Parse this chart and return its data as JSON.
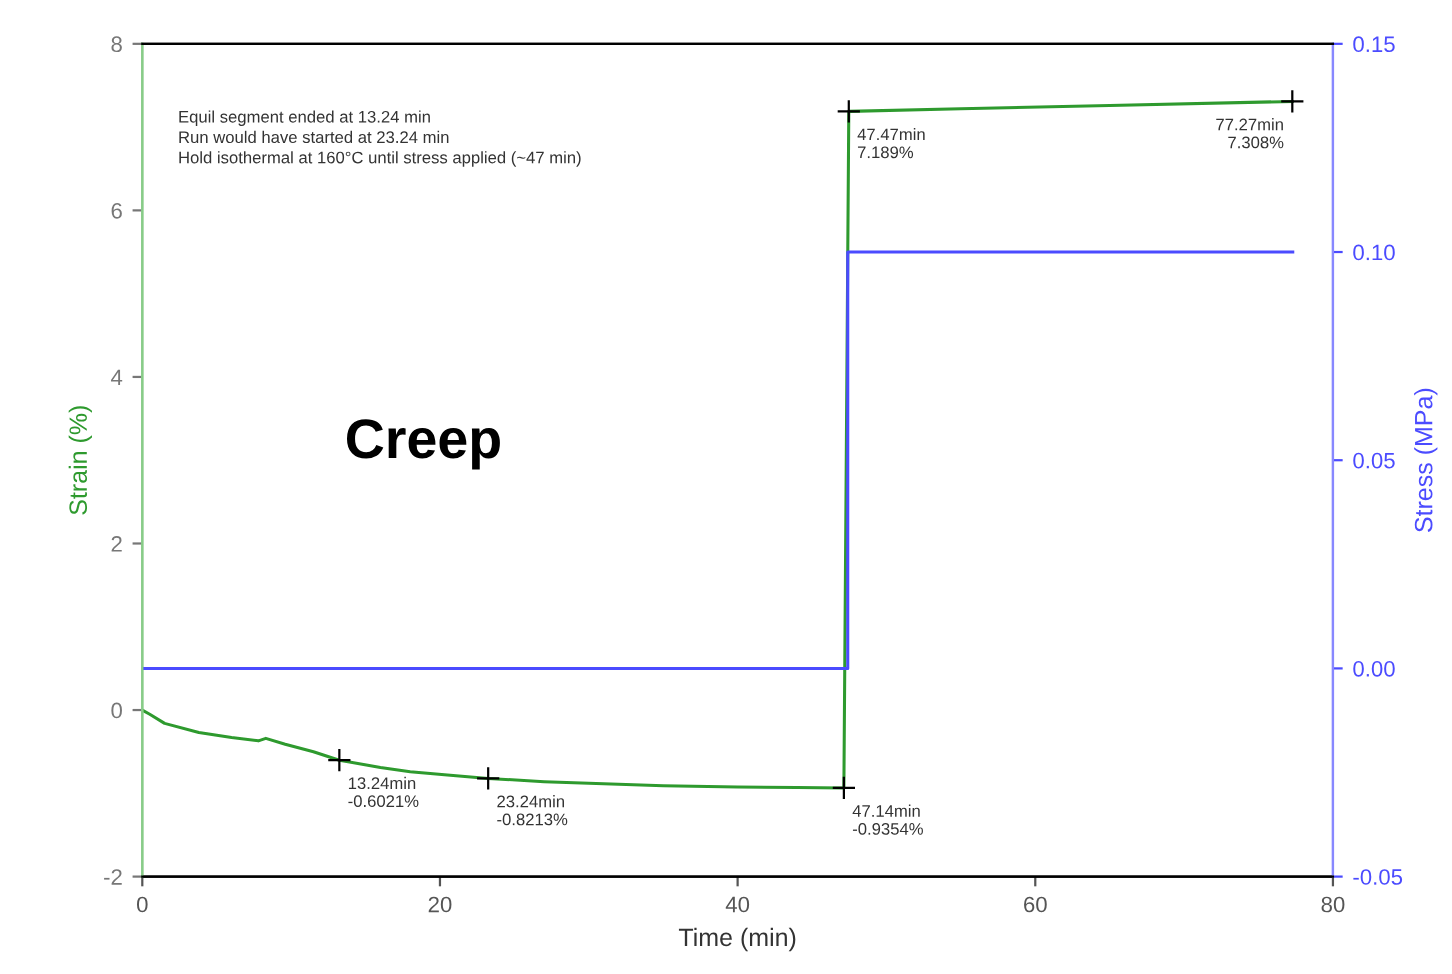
{
  "chart_data": {
    "type": "line",
    "xlabel": "Time (min)",
    "ylabel": "Strain (%)",
    "y2label": "Stress (MPa)",
    "series": [
      {
        "color": "#2e9a2e",
        "x": [
          0,
          0.5,
          1.5,
          3.8,
          6,
          7.8,
          8.3,
          9.6,
          11.5,
          13.24,
          16,
          18,
          20.5,
          23.24,
          27,
          30,
          35,
          40,
          44,
          47.14,
          47.47,
          55,
          65,
          77.27
        ],
        "values": [
          0,
          -0.05,
          -0.16,
          -0.27,
          -0.33,
          -0.37,
          -0.34,
          -0.41,
          -0.5,
          -0.6021,
          -0.69,
          -0.74,
          -0.78,
          -0.8213,
          -0.86,
          -0.88,
          -0.91,
          -0.925,
          -0.93,
          -0.9354,
          7.189,
          7.22,
          7.26,
          7.308
        ]
      },
      {
        "color": "#4b4bff",
        "axis": "y2",
        "x": [
          0,
          47.4,
          47.4,
          77.3
        ],
        "values": [
          0,
          0,
          0.1,
          0.1
        ]
      }
    ],
    "xlim": [
      0,
      80
    ],
    "xticks": [
      0,
      20,
      40,
      60,
      80
    ],
    "ylim": [
      -2,
      8
    ],
    "yticks": [
      -2,
      0,
      2,
      4,
      6,
      8
    ],
    "y2lim": [
      -0.05,
      0.15
    ],
    "y2ticks": [
      {
        "value": -0.05,
        "label": "-0.05"
      },
      {
        "value": 0,
        "label": "0.00"
      },
      {
        "value": 0.05,
        "label": "0.05"
      },
      {
        "value": 0.1,
        "label": "0.10"
      },
      {
        "value": 0.15,
        "label": "0.15"
      }
    ],
    "grid": false,
    "legend": false,
    "line_style": "solid",
    "annotations": [
      "Equil segment ended at 13.24 min\nRun would have started at 23.24 min\nHold isothermal at 160°C until stress applied (~47 min)",
      "Creep",
      {
        "text": "13.24min\n-0.6021%",
        "x": 13.24,
        "y": -0.6021
      },
      {
        "text": "23.24min\n-0.8213%",
        "x": 23.24,
        "y": -0.8213
      },
      {
        "text": "47.14min\n-0.9354%",
        "x": 47.14,
        "y": -0.9354
      },
      {
        "text": "47.47min\n7.189%",
        "x": 47.47,
        "y": 7.189
      },
      {
        "text": "77.27min\n7.308%",
        "x": 77.27,
        "y": 7.308
      }
    ]
  }
}
